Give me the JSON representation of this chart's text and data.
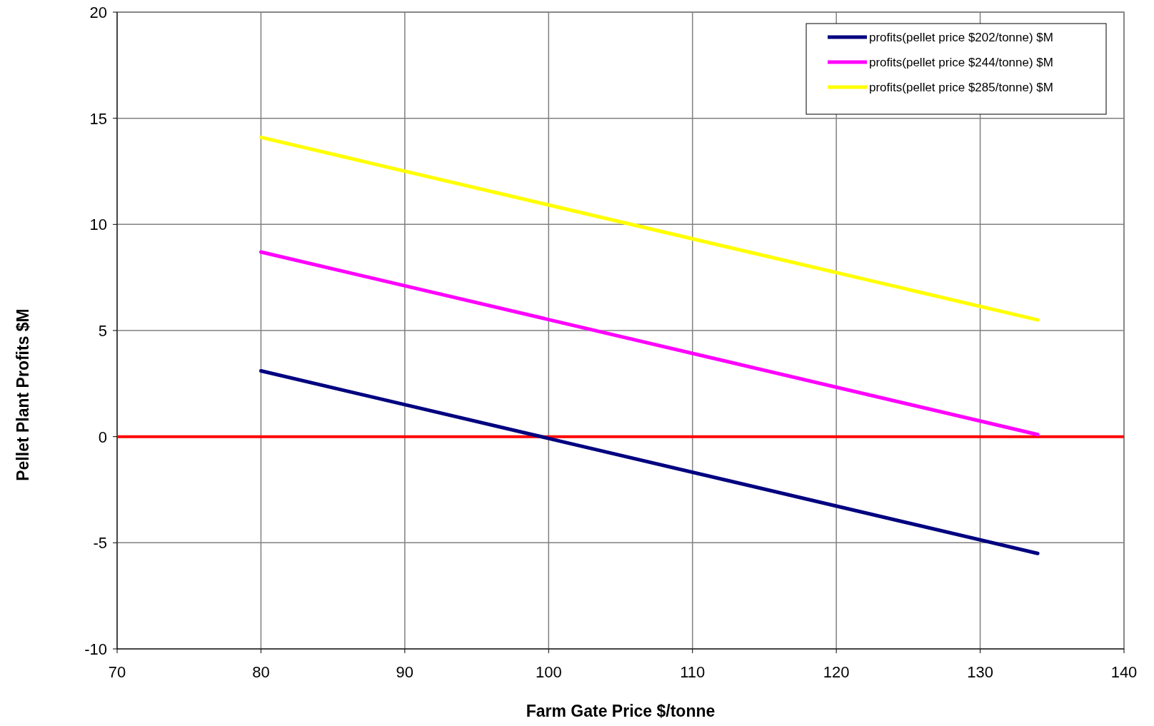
{
  "chart_data": {
    "type": "line",
    "xlabel": "Farm Gate Price $/tonne",
    "ylabel": "Pellet Plant Profits $M",
    "xlim": [
      70,
      140
    ],
    "xticks": [
      70,
      80,
      90,
      100,
      110,
      120,
      130,
      140
    ],
    "ylim": [
      -10,
      20
    ],
    "yticks": [
      -10,
      -5,
      0,
      5,
      10,
      15,
      20
    ],
    "grid": true,
    "legend": "top right",
    "line_style": "solid",
    "x": [
      80,
      134
    ],
    "series": [
      {
        "name": "profits(pellet price $202/tonne) $M",
        "color": "#000080",
        "values": [
          3.1,
          -5.5
        ]
      },
      {
        "name": "profits(pellet price $244/tonne) $M",
        "color": "#ff00ff",
        "values": [
          8.7,
          0.1
        ]
      },
      {
        "name": "profits(pellet price $285/tonne) $M",
        "color": "#ffff00",
        "values": [
          14.1,
          5.5
        ]
      }
    ],
    "ref_lines": [
      {
        "axis": "y",
        "value": 0,
        "color": "#ff0000"
      }
    ]
  }
}
